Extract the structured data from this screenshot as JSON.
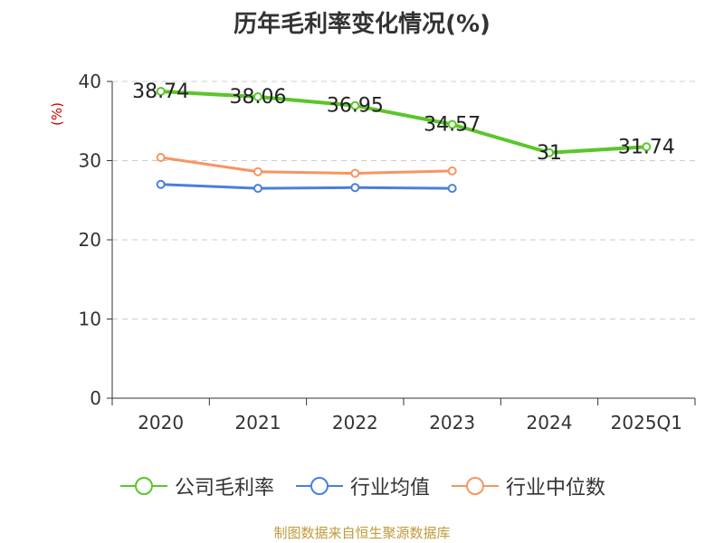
{
  "title": "历年毛利率变化情况(%)",
  "source_note": "制图数据来自恒生聚源数据库",
  "colors": {
    "source_note": "#c09a3a",
    "ylabel": "#cc0000"
  },
  "chart_data": {
    "type": "line",
    "ylabel": "(%)",
    "ylim": [
      0,
      40
    ],
    "yticks": [
      0,
      10,
      20,
      30,
      40
    ],
    "grid": true,
    "legend_position": "bottom",
    "categories": [
      "2020",
      "2021",
      "2022",
      "2023",
      "2024",
      "2025Q1"
    ],
    "series": [
      {
        "name": "公司毛利率",
        "color": "#5cc52a",
        "values": [
          38.74,
          38.06,
          36.95,
          34.57,
          31,
          31.74
        ],
        "labels": [
          "38.74",
          "38.06",
          "36.95",
          "34.57",
          "31",
          "31.74"
        ]
      },
      {
        "name": "行业均值",
        "color": "#4a7fdc",
        "values": [
          27.0,
          26.5,
          26.6,
          26.5,
          null,
          null
        ]
      },
      {
        "name": "行业中位数",
        "color": "#f59562",
        "values": [
          30.4,
          28.6,
          28.4,
          28.7,
          null,
          null
        ]
      }
    ]
  }
}
